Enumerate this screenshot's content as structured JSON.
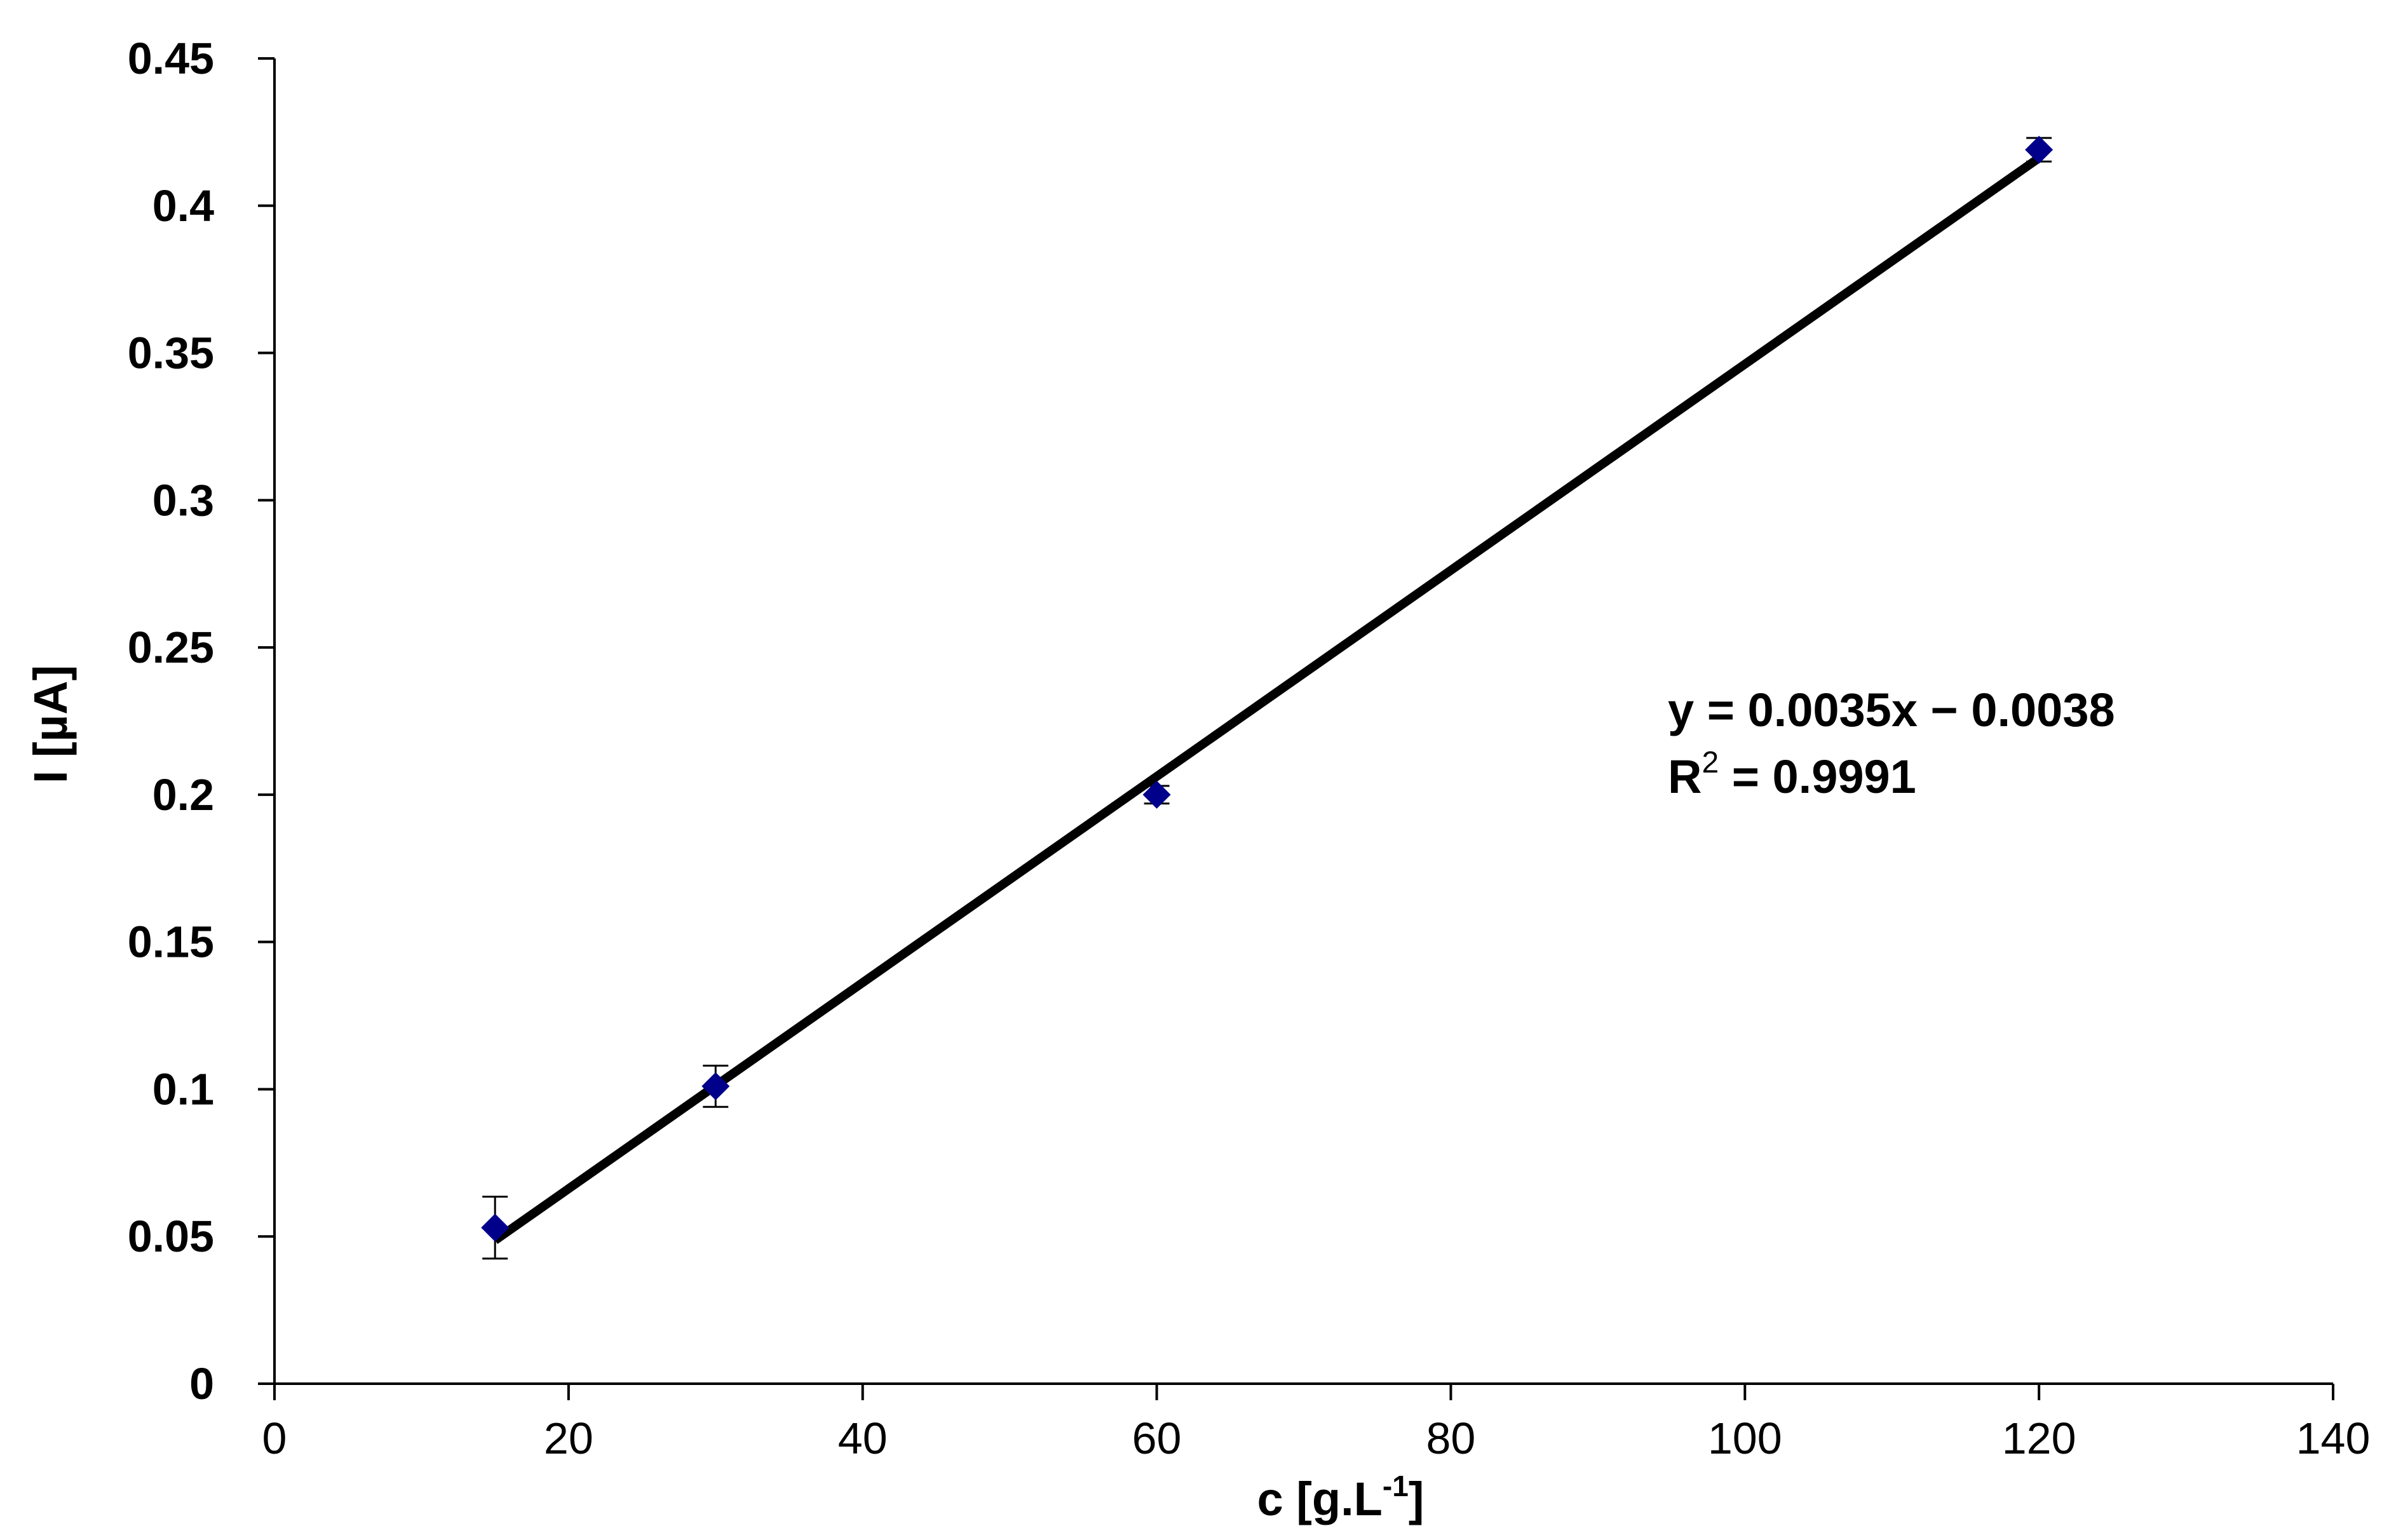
{
  "chart_data": {
    "type": "scatter",
    "xlabel": "c [g.L",
    "xlabel_superscript": "-1",
    "xlabel_suffix": "]",
    "ylabel": "I [µA]",
    "xlim": [
      0,
      140
    ],
    "ylim": [
      0,
      0.45
    ],
    "x_ticks": [
      0,
      20,
      40,
      60,
      80,
      100,
      120,
      140
    ],
    "y_ticks": [
      0,
      0.05,
      0.1,
      0.15,
      0.2,
      0.25,
      0.3,
      0.35,
      0.4,
      0.45
    ],
    "grid": false,
    "series": [
      {
        "points": [
          {
            "x": 15,
            "y": 0.053,
            "err": 0.0105
          },
          {
            "x": 30,
            "y": 0.101,
            "err": 0.007
          },
          {
            "x": 60,
            "y": 0.2,
            "err": 0.003
          },
          {
            "x": 120,
            "y": 0.419,
            "err": 0.004
          }
        ]
      }
    ],
    "trendline": {
      "slope": 0.0035,
      "intercept": -0.0038,
      "x_range": [
        15,
        120
      ]
    },
    "annotation": {
      "equation": "y = 0.0035x − 0.0038",
      "r2_prefix": "R",
      "r2_superscript": "2",
      "r2_value": " = 0.9991"
    },
    "colors": {
      "marker": "#00008B",
      "line": "#000000",
      "axis": "#000000"
    }
  }
}
